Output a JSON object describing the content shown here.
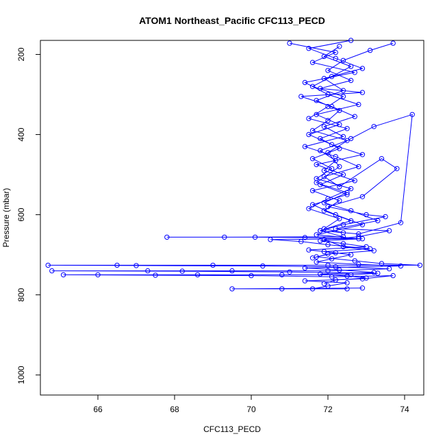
{
  "chart_data": {
    "type": "line",
    "title": "ATOM1 Northeast_Pacific CFC113_PECD",
    "xlabel": "CFC113_PECD",
    "ylabel": "Pressure (mbar)",
    "xlim": [
      64.5,
      74.5
    ],
    "ylim": [
      1050,
      165
    ],
    "y_reversed": true,
    "x_ticks": [
      66,
      68,
      70,
      72,
      74
    ],
    "y_ticks": [
      200,
      400,
      600,
      800,
      1000
    ],
    "grid": false,
    "marker": "open-circle",
    "color": "#0000ff",
    "series": [
      {
        "name": "",
        "points": [
          [
            72.6,
            165
          ],
          [
            71.5,
            185
          ],
          [
            72.2,
            210
          ],
          [
            72.9,
            235
          ],
          [
            71.9,
            260
          ],
          [
            72.4,
            290
          ],
          [
            71.7,
            315
          ],
          [
            72.3,
            340
          ],
          [
            72.0,
            365
          ],
          [
            71.6,
            390
          ],
          [
            72.5,
            415
          ],
          [
            71.8,
            440
          ],
          [
            72.2,
            465
          ],
          [
            71.9,
            490
          ],
          [
            72.7,
            515
          ],
          [
            71.6,
            540
          ],
          [
            72.3,
            565
          ],
          [
            71.9,
            590
          ],
          [
            72.6,
            615
          ],
          [
            71.8,
            640
          ],
          [
            72.4,
            655
          ],
          [
            69.3,
            656
          ],
          [
            67.8,
            656
          ],
          [
            70.1,
            656
          ],
          [
            71.4,
            657
          ],
          [
            72.9,
            660
          ],
          [
            71.8,
            665
          ],
          [
            72.4,
            672
          ],
          [
            73.0,
            680
          ],
          [
            71.5,
            688
          ],
          [
            72.2,
            695
          ],
          [
            71.7,
            705
          ],
          [
            72.7,
            715
          ],
          [
            73.4,
            722
          ],
          [
            74.4,
            726
          ],
          [
            72.0,
            726
          ],
          [
            69.0,
            726
          ],
          [
            66.5,
            726
          ],
          [
            64.7,
            726
          ],
          [
            67.0,
            727
          ],
          [
            70.3,
            728
          ],
          [
            72.2,
            730
          ],
          [
            73.6,
            735
          ],
          [
            72.0,
            740
          ],
          [
            69.5,
            740
          ],
          [
            67.3,
            740
          ],
          [
            64.8,
            740
          ],
          [
            68.2,
            741
          ],
          [
            71.0,
            743
          ],
          [
            73.3,
            746
          ],
          [
            72.6,
            750
          ],
          [
            70.8,
            750
          ],
          [
            68.6,
            750
          ],
          [
            66.0,
            750
          ],
          [
            65.1,
            750
          ],
          [
            67.5,
            751
          ],
          [
            70.0,
            752
          ],
          [
            72.1,
            755
          ],
          [
            73.7,
            752
          ],
          [
            72.9,
            760
          ],
          [
            71.4,
            765
          ],
          [
            72.5,
            770
          ],
          [
            72.0,
            778
          ],
          [
            71.6,
            785
          ],
          [
            72.5,
            785
          ],
          [
            70.8,
            785
          ],
          [
            69.5,
            785
          ],
          [
            72.9,
            783
          ]
        ]
      },
      {
        "name": "",
        "points": [
          [
            71.0,
            172
          ],
          [
            72.2,
            195
          ],
          [
            71.6,
            220
          ],
          [
            72.7,
            245
          ],
          [
            71.4,
            270
          ],
          [
            72.0,
            300
          ],
          [
            72.8,
            325
          ],
          [
            71.7,
            350
          ],
          [
            72.3,
            375
          ],
          [
            71.5,
            400
          ],
          [
            72.1,
            425
          ],
          [
            72.9,
            450
          ],
          [
            71.7,
            475
          ],
          [
            72.4,
            500
          ],
          [
            71.8,
            525
          ],
          [
            72.5,
            550
          ],
          [
            71.6,
            575
          ],
          [
            72.2,
            600
          ],
          [
            72.9,
            625
          ],
          [
            71.7,
            650
          ],
          [
            72.8,
            660
          ],
          [
            70.5,
            662
          ],
          [
            71.3,
            667
          ],
          [
            72.0,
            675
          ],
          [
            73.1,
            685
          ],
          [
            71.9,
            692
          ],
          [
            72.6,
            700
          ],
          [
            72.1,
            710
          ],
          [
            71.7,
            718
          ],
          [
            72.8,
            724
          ],
          [
            73.9,
            728
          ],
          [
            71.4,
            733
          ],
          [
            72.3,
            738
          ],
          [
            73.2,
            744
          ],
          [
            71.8,
            748
          ],
          [
            72.5,
            753
          ],
          [
            73.0,
            758
          ],
          [
            72.2,
            763
          ],
          [
            71.9,
            772
          ]
        ]
      },
      {
        "name": "",
        "points": [
          [
            73.7,
            172
          ],
          [
            73.1,
            190
          ],
          [
            72.4,
            215
          ],
          [
            72.0,
            240
          ],
          [
            72.6,
            265
          ],
          [
            71.8,
            285
          ],
          [
            72.9,
            295
          ],
          [
            71.3,
            305
          ],
          [
            72.1,
            330
          ],
          [
            72.7,
            355
          ],
          [
            71.9,
            380
          ],
          [
            72.4,
            405
          ],
          [
            71.4,
            430
          ],
          [
            72.2,
            455
          ],
          [
            72.8,
            480
          ],
          [
            71.9,
            505
          ],
          [
            72.3,
            530
          ],
          [
            73.4,
            460
          ],
          [
            73.8,
            485
          ],
          [
            72.9,
            555
          ],
          [
            72.0,
            580
          ],
          [
            73.0,
            600
          ],
          [
            73.5,
            605
          ],
          [
            72.4,
            625
          ],
          [
            71.8,
            640
          ],
          [
            72.8,
            648
          ],
          [
            73.9,
            620
          ],
          [
            74.2,
            350
          ],
          [
            73.2,
            380
          ],
          [
            72.6,
            410
          ],
          [
            72.0,
            445
          ],
          [
            72.3,
            480
          ],
          [
            71.7,
            520
          ],
          [
            72.5,
            545
          ],
          [
            71.9,
            570
          ],
          [
            72.6,
            590
          ],
          [
            73.3,
            615
          ],
          [
            72.2,
            635
          ],
          [
            73.6,
            640
          ],
          [
            72.8,
            655
          ],
          [
            71.9,
            662
          ],
          [
            72.4,
            680
          ],
          [
            73.2,
            690
          ],
          [
            72.0,
            698
          ],
          [
            71.6,
            708
          ]
        ]
      },
      {
        "name": "",
        "points": [
          [
            72.3,
            180
          ],
          [
            71.9,
            205
          ],
          [
            72.6,
            230
          ],
          [
            72.1,
            255
          ],
          [
            71.6,
            280
          ],
          [
            72.4,
            305
          ],
          [
            72.0,
            330
          ],
          [
            71.5,
            360
          ],
          [
            72.5,
            385
          ],
          [
            71.8,
            410
          ],
          [
            72.3,
            435
          ],
          [
            71.6,
            460
          ],
          [
            72.1,
            485
          ],
          [
            71.7,
            510
          ],
          [
            72.6,
            535
          ],
          [
            72.0,
            560
          ],
          [
            71.5,
            585
          ],
          [
            72.3,
            610
          ],
          [
            71.9,
            635
          ],
          [
            72.4,
            645
          ]
        ]
      }
    ]
  }
}
